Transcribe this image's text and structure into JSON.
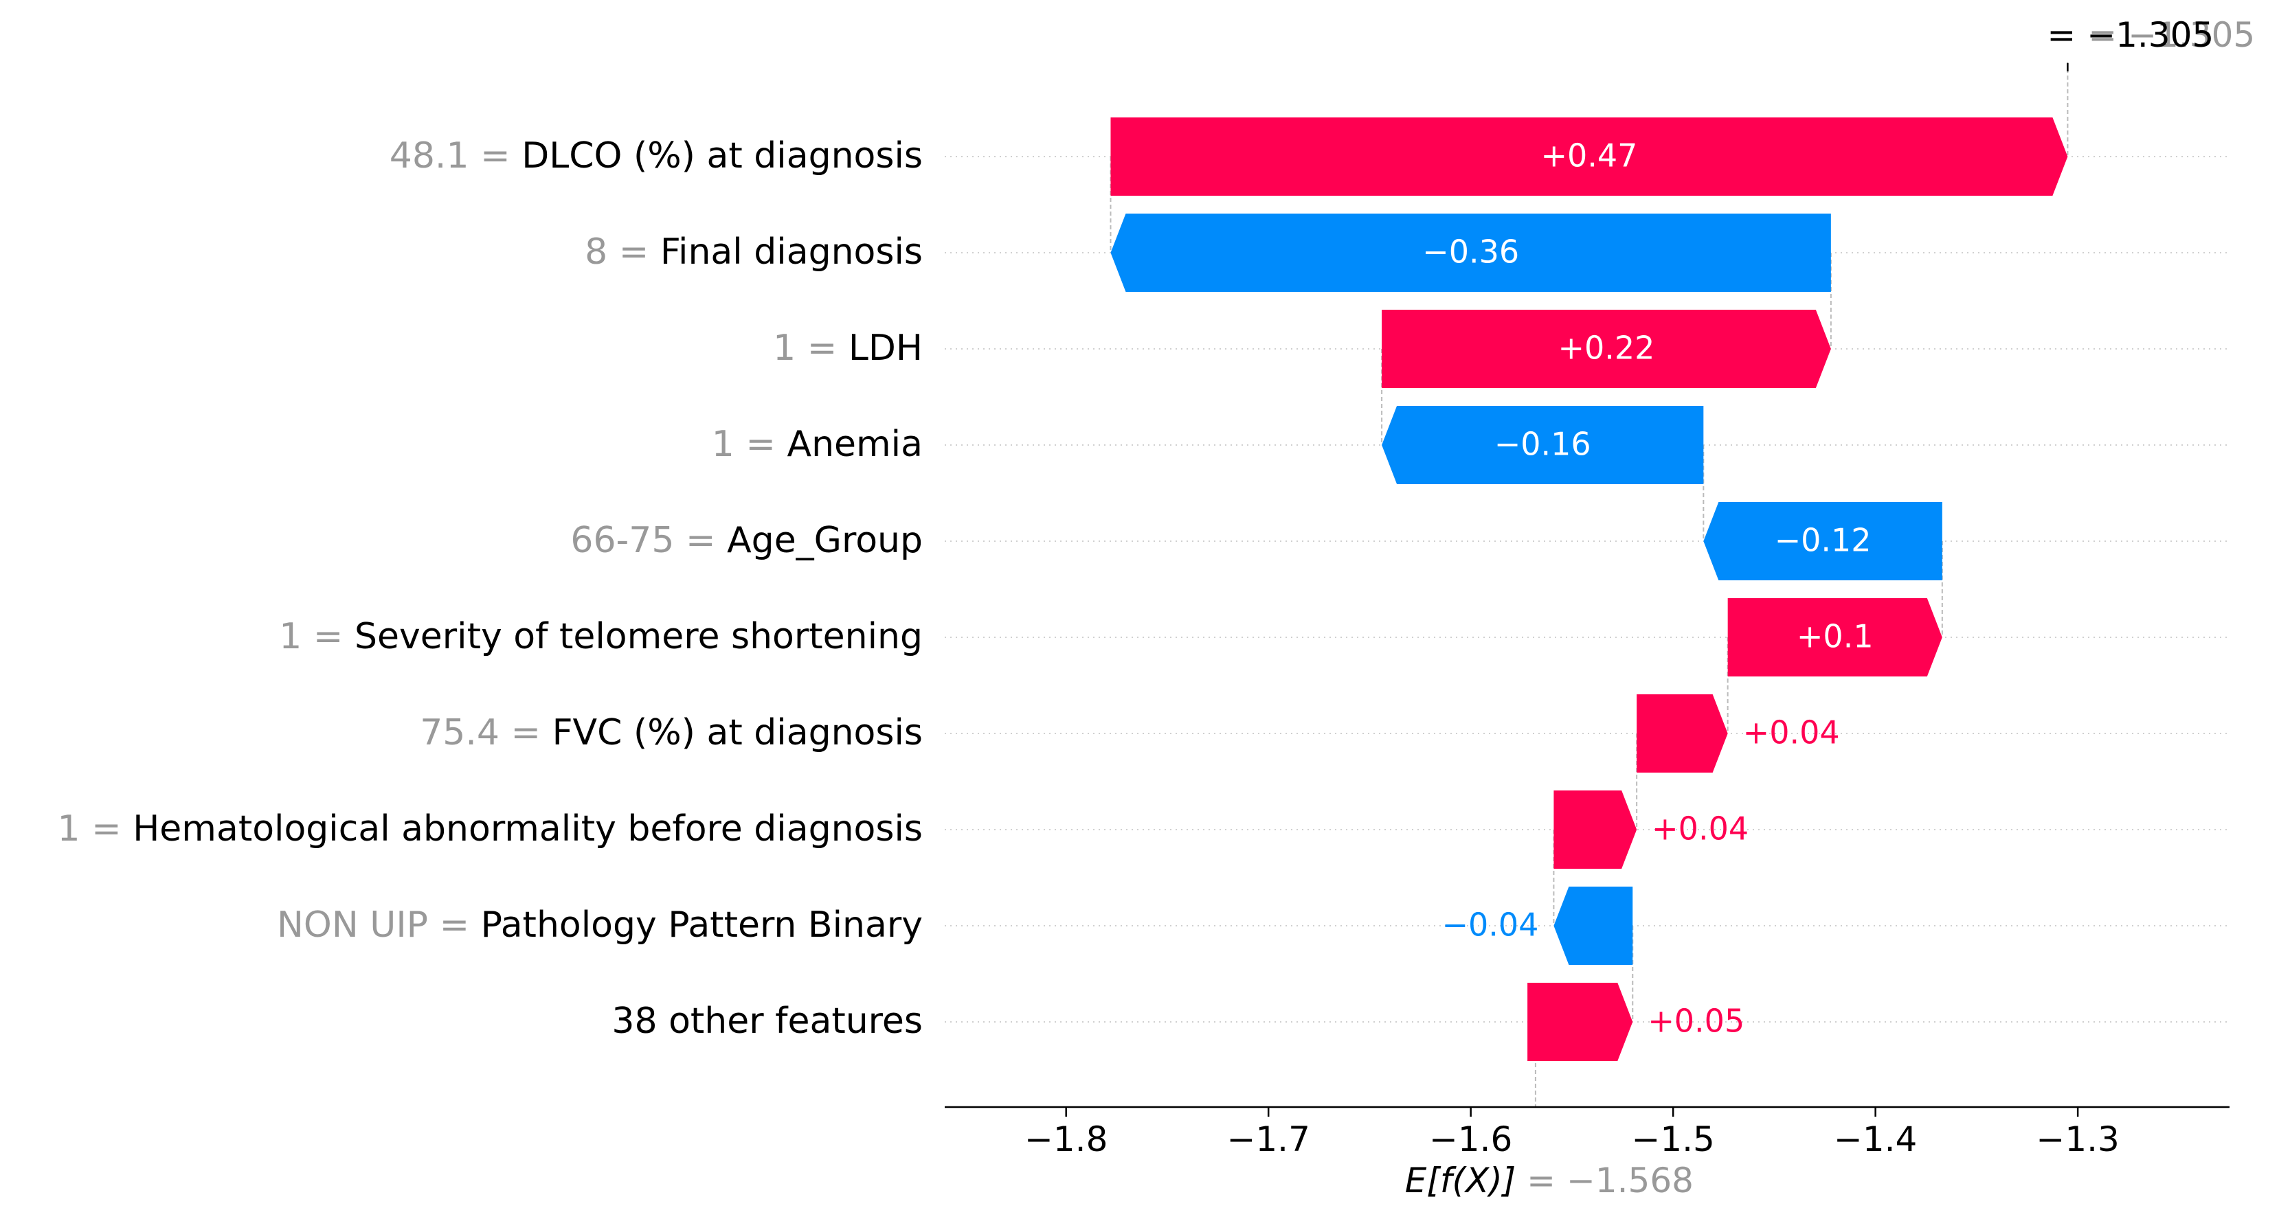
{
  "chart_data": {
    "type": "waterfall",
    "base_value": -1.568,
    "base_label_prefix": "E[f(X)]",
    "base_label_value": "= −1.568",
    "output_value": -1.305,
    "output_label_prefix": "f(x)",
    "output_label_value": "= −1.305",
    "xlim": [
      -1.86,
      -1.225
    ],
    "x_ticks": [
      -1.8,
      -1.7,
      -1.6,
      -1.5,
      -1.4,
      -1.3
    ],
    "x_tick_labels": [
      "−1.8",
      "−1.7",
      "−1.6",
      "−1.5",
      "−1.4",
      "−1.3"
    ],
    "features": [
      {
        "value": "48.1",
        "name": "DLCO (%) at diagnosis",
        "start": -1.778,
        "end": -1.305,
        "shap": 0.47,
        "label": "+0.47"
      },
      {
        "value": "8",
        "name": "Final diagnosis",
        "start": -1.422,
        "end": -1.778,
        "shap": -0.36,
        "label": "−0.36"
      },
      {
        "value": "1",
        "name": "LDH",
        "start": -1.644,
        "end": -1.422,
        "shap": 0.22,
        "label": "+0.22"
      },
      {
        "value": "1",
        "name": "Anemia",
        "start": -1.485,
        "end": -1.644,
        "shap": -0.16,
        "label": "−0.16"
      },
      {
        "value": "66-75",
        "name": "Age_Group",
        "start": -1.367,
        "end": -1.485,
        "shap": -0.12,
        "label": "−0.12"
      },
      {
        "value": "1",
        "name": "Severity of telomere shortening",
        "start": -1.473,
        "end": -1.367,
        "shap": 0.1,
        "label": "+0.1"
      },
      {
        "value": "75.4",
        "name": "FVC (%) at diagnosis",
        "start": -1.518,
        "end": -1.473,
        "shap": 0.04,
        "label": "+0.04"
      },
      {
        "value": "1",
        "name": "Hematological abnormality before diagnosis",
        "start": -1.559,
        "end": -1.518,
        "shap": 0.04,
        "label": "+0.04"
      },
      {
        "value": "NON UIP",
        "name": "Pathology Pattern Binary",
        "start": -1.52,
        "end": -1.559,
        "shap": -0.04,
        "label": "−0.04"
      },
      {
        "value": "",
        "name": "38 other features",
        "start": -1.572,
        "end": -1.52,
        "shap": 0.05,
        "label": "+0.05"
      }
    ],
    "colors": {
      "positive": "#ff0051",
      "negative": "#008bfb",
      "value_text": "#999999",
      "name_text": "#000000"
    }
  }
}
